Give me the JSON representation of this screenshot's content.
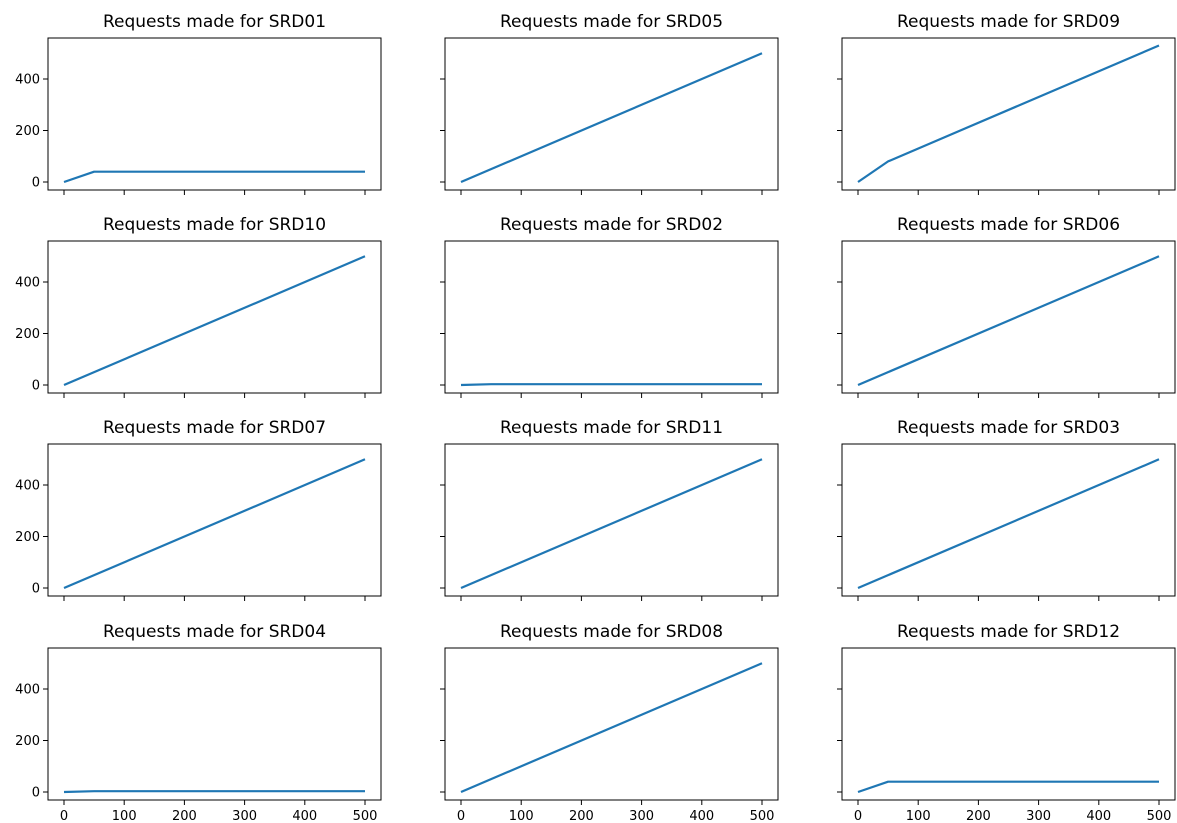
{
  "chart_data": [
    {
      "type": "line",
      "title": "Requests made for SRD01",
      "xlabel": "",
      "ylabel": "",
      "xlim": [
        0,
        500
      ],
      "ylim": [
        0,
        520
      ],
      "x": [
        0,
        50,
        500
      ],
      "y": [
        0,
        40,
        40
      ],
      "color": "#1f77b4",
      "grid": false
    },
    {
      "type": "line",
      "title": "Requests made for SRD05",
      "xlabel": "",
      "ylabel": "",
      "xlim": [
        0,
        500
      ],
      "ylim": [
        0,
        520
      ],
      "x": [
        0,
        500
      ],
      "y": [
        0,
        500
      ],
      "color": "#1f77b4",
      "grid": false
    },
    {
      "type": "line",
      "title": "Requests made for SRD09",
      "xlabel": "",
      "ylabel": "",
      "xlim": [
        0,
        500
      ],
      "ylim": [
        0,
        520
      ],
      "x": [
        0,
        50,
        500
      ],
      "y": [
        0,
        80,
        530
      ],
      "color": "#1f77b4",
      "grid": false
    },
    {
      "type": "line",
      "title": "Requests made for SRD10",
      "xlabel": "",
      "ylabel": "",
      "xlim": [
        0,
        500
      ],
      "ylim": [
        0,
        520
      ],
      "x": [
        0,
        500
      ],
      "y": [
        0,
        500
      ],
      "color": "#1f77b4",
      "grid": false
    },
    {
      "type": "line",
      "title": "Requests made for SRD02",
      "xlabel": "",
      "ylabel": "",
      "xlim": [
        0,
        500
      ],
      "ylim": [
        0,
        520
      ],
      "x": [
        0,
        50,
        500
      ],
      "y": [
        0,
        3,
        3
      ],
      "color": "#1f77b4",
      "grid": false
    },
    {
      "type": "line",
      "title": "Requests made for SRD06",
      "xlabel": "",
      "ylabel": "",
      "xlim": [
        0,
        500
      ],
      "ylim": [
        0,
        520
      ],
      "x": [
        0,
        500
      ],
      "y": [
        0,
        500
      ],
      "color": "#1f77b4",
      "grid": false
    },
    {
      "type": "line",
      "title": "Requests made for SRD07",
      "xlabel": "",
      "ylabel": "",
      "xlim": [
        0,
        500
      ],
      "ylim": [
        0,
        520
      ],
      "x": [
        0,
        500
      ],
      "y": [
        0,
        500
      ],
      "color": "#1f77b4",
      "grid": false
    },
    {
      "type": "line",
      "title": "Requests made for SRD11",
      "xlabel": "",
      "ylabel": "",
      "xlim": [
        0,
        500
      ],
      "ylim": [
        0,
        520
      ],
      "x": [
        0,
        500
      ],
      "y": [
        0,
        500
      ],
      "color": "#1f77b4",
      "grid": false
    },
    {
      "type": "line",
      "title": "Requests made for SRD03",
      "xlabel": "",
      "ylabel": "",
      "xlim": [
        0,
        500
      ],
      "ylim": [
        0,
        520
      ],
      "x": [
        0,
        500
      ],
      "y": [
        0,
        500
      ],
      "color": "#1f77b4",
      "grid": false
    },
    {
      "type": "line",
      "title": "Requests made for SRD04",
      "xlabel": "",
      "ylabel": "",
      "xlim": [
        0,
        500
      ],
      "ylim": [
        0,
        520
      ],
      "x": [
        0,
        50,
        500
      ],
      "y": [
        0,
        3,
        3
      ],
      "color": "#1f77b4",
      "grid": false
    },
    {
      "type": "line",
      "title": "Requests made for SRD08",
      "xlabel": "",
      "ylabel": "",
      "xlim": [
        0,
        500
      ],
      "ylim": [
        0,
        520
      ],
      "x": [
        0,
        500
      ],
      "y": [
        0,
        500
      ],
      "color": "#1f77b4",
      "grid": false
    },
    {
      "type": "line",
      "title": "Requests made for SRD12",
      "xlabel": "",
      "ylabel": "",
      "xlim": [
        0,
        500
      ],
      "ylim": [
        0,
        520
      ],
      "x": [
        0,
        50,
        500
      ],
      "y": [
        0,
        40,
        40
      ],
      "color": "#1f77b4",
      "grid": false
    }
  ],
  "axes": {
    "xticks": [
      0,
      100,
      200,
      300,
      400,
      500
    ],
    "yticks": [
      0,
      200,
      400
    ]
  }
}
